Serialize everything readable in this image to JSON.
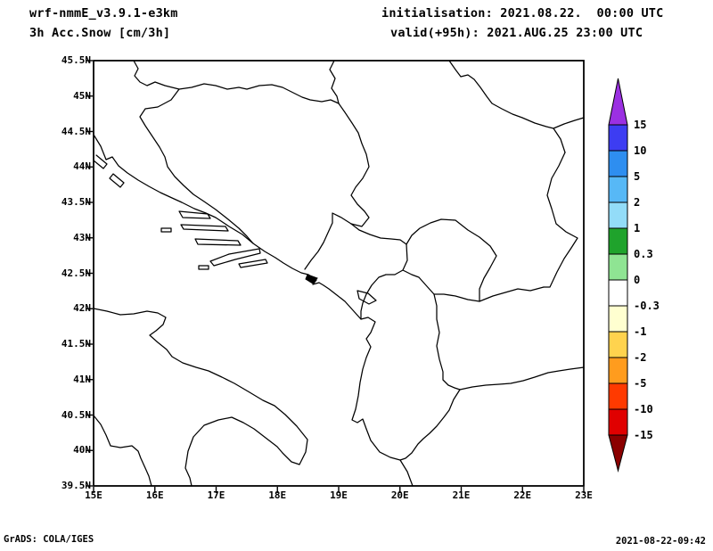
{
  "header": {
    "model": "wrf-nmmE_v3.9.1-e3km",
    "field": "3h Acc.Snow [cm/3h]",
    "init": "initialisation: 2021.08.22.  00:00 UTC",
    "valid": "valid(+95h): 2021.AUG.25 23:00 UTC"
  },
  "footer": {
    "credit": "GrADS: COLA/IGES",
    "generated": "2021-08-22-09:42"
  },
  "chart_data": {
    "type": "heatmap",
    "title": "3h Acc.Snow [cm/3h]",
    "model": "wrf-nmmE_v3.9.1-e3km",
    "init_time": "2021.08.22. 00:00 UTC",
    "valid_time": "2021.AUG.25 23:00 UTC (+95h)",
    "region": "Adriatic Sea / western Balkans map panel",
    "x_axis": {
      "label": "longitude",
      "tick_labels": [
        "15E",
        "16E",
        "17E",
        "18E",
        "19E",
        "20E",
        "21E",
        "22E",
        "23E"
      ],
      "range_deg_e": [
        15,
        23
      ]
    },
    "y_axis": {
      "label": "latitude",
      "tick_labels": [
        "45.5N",
        "45N",
        "44.5N",
        "44N",
        "43.5N",
        "43N",
        "42.5N",
        "42N",
        "41.5N",
        "41N",
        "40.5N",
        "40N",
        "39.5N"
      ],
      "range_deg_n": [
        39.5,
        45.5
      ]
    },
    "colorbar": {
      "units": "cm/3h",
      "levels": [
        "15",
        "10",
        "5",
        "2",
        "1",
        "0.3",
        "0",
        "-0.3",
        "-1",
        "-2",
        "-5",
        "-10",
        "-15"
      ],
      "colors_top_to_bottom": [
        "#9b30e2",
        "#3d3df2",
        "#2e8ef0",
        "#57b8f6",
        "#93dcf8",
        "#1fa32c",
        "#8fe493",
        "#ffffff",
        "#ffffd0",
        "#ffd34e",
        "#ff9c1e",
        "#ff3a00",
        "#e00000",
        "#8b0000"
      ],
      "legend_position": "right"
    },
    "grid": false,
    "values": "no shaded snow values in the domain (field is 0 everywhere); only coastlines and country borders are drawn"
  }
}
